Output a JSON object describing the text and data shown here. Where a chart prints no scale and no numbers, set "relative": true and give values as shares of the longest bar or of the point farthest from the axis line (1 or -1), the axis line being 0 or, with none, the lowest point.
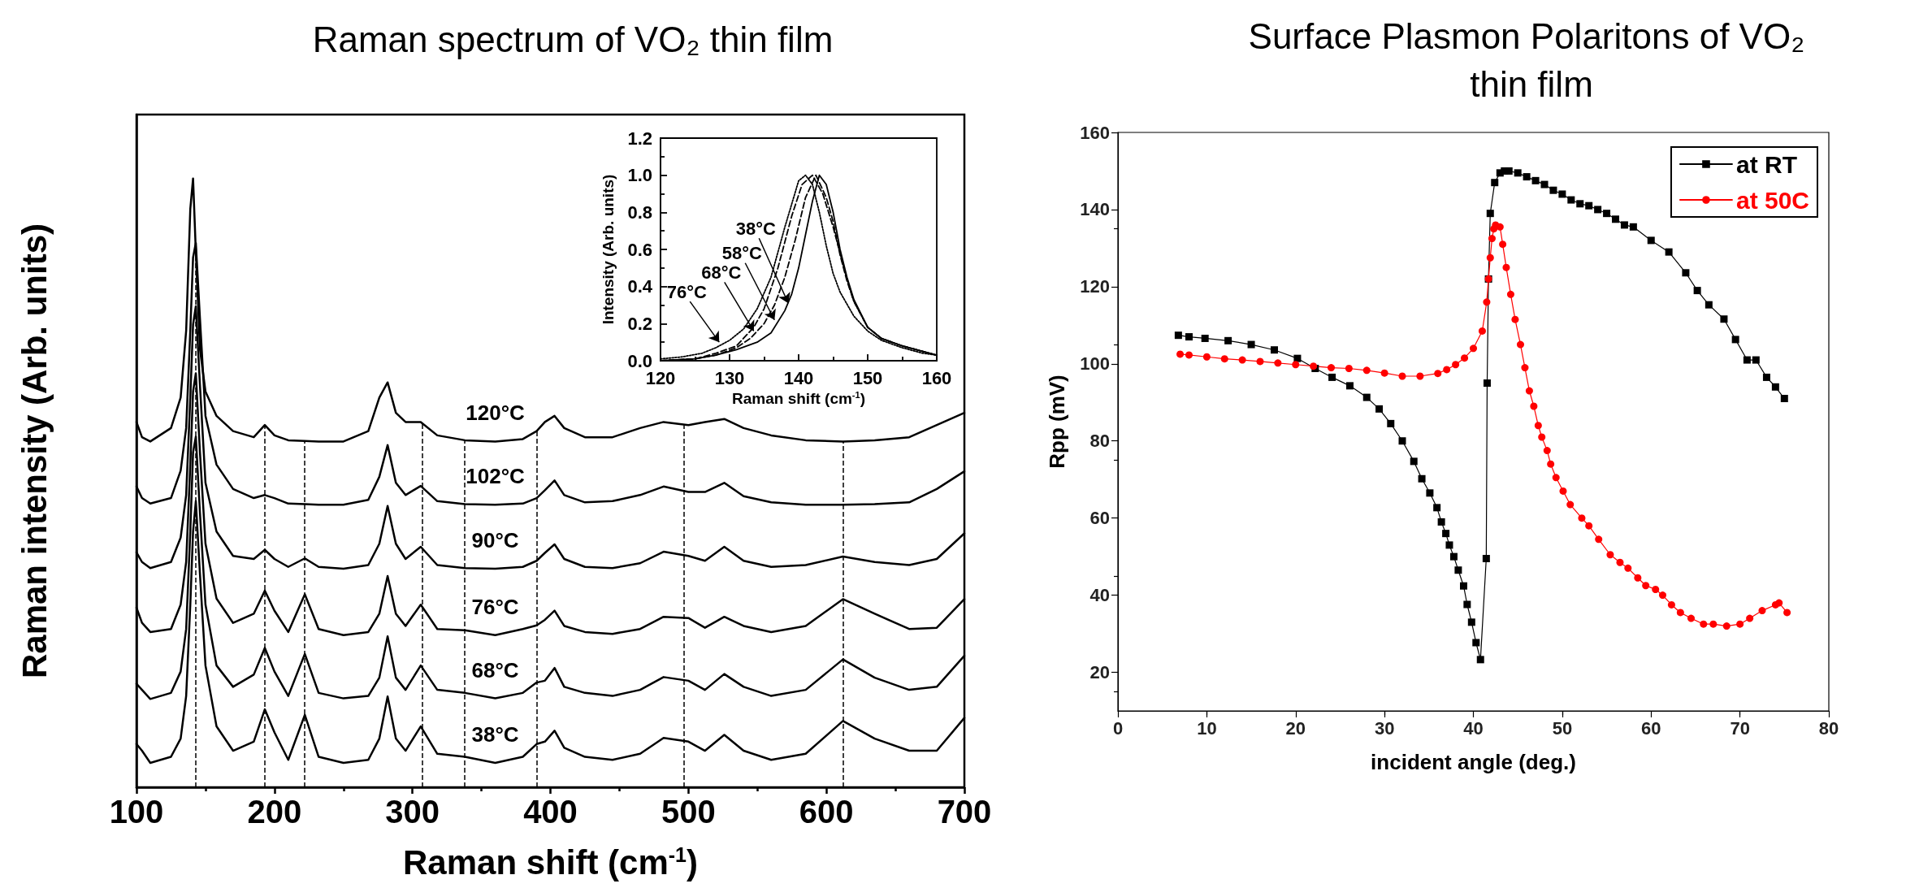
{
  "chart_data": [
    {
      "type": "line",
      "title": "Raman spectrum of VO₂ thin film",
      "xlabel": "Raman shift (cm$^{-1}$)",
      "ylabel": "Raman intensity (Arb. units)",
      "relative": true,
      "tick_labels": "x",
      "marker": "none",
      "line_style": "solid",
      "grid": false,
      "legend": false,
      "xlim": [
        100,
        700
      ],
      "xticks": [
        100,
        200,
        300,
        400,
        500,
        600,
        700
      ],
      "x": [
        100,
        104,
        110,
        125,
        132,
        136,
        139,
        141,
        143,
        146,
        150,
        158,
        170,
        185,
        193,
        200,
        210,
        222,
        232,
        250,
        268,
        276,
        282,
        288,
        295,
        306,
        318,
        338,
        360,
        380,
        390,
        396,
        403,
        410,
        425,
        445,
        465,
        482,
        500,
        512,
        526,
        540,
        560,
        585,
        612,
        635,
        660,
        680,
        700
      ],
      "series": [
        {
          "color": "#000000",
          "values": [
            0.6,
            0.575,
            0.568,
            0.59,
            0.64,
            0.75,
            0.95,
            1.0,
            0.88,
            0.72,
            0.65,
            0.61,
            0.585,
            0.575,
            0.595,
            0.578,
            0.57,
            0.569,
            0.568,
            0.568,
            0.585,
            0.64,
            0.665,
            0.615,
            0.6,
            0.6,
            0.578,
            0.57,
            0.568,
            0.572,
            0.585,
            0.6,
            0.61,
            0.59,
            0.575,
            0.575,
            0.59,
            0.6,
            0.595,
            0.6,
            0.605,
            0.59,
            0.578,
            0.57,
            0.568,
            0.57,
            0.575,
            0.595,
            0.615
          ]
        },
        {
          "color": "#000000",
          "values": [
            0.494,
            0.475,
            0.466,
            0.475,
            0.52,
            0.59,
            0.75,
            0.87,
            0.894,
            0.77,
            0.61,
            0.53,
            0.49,
            0.475,
            0.48,
            0.475,
            0.466,
            0.465,
            0.464,
            0.464,
            0.472,
            0.51,
            0.562,
            0.5,
            0.48,
            0.495,
            0.47,
            0.465,
            0.464,
            0.466,
            0.475,
            0.488,
            0.504,
            0.48,
            0.468,
            0.47,
            0.48,
            0.494,
            0.485,
            0.485,
            0.5,
            0.478,
            0.468,
            0.464,
            0.464,
            0.465,
            0.468,
            0.49,
            0.519
          ]
        },
        {
          "color": "#000000",
          "values": [
            0.386,
            0.37,
            0.36,
            0.37,
            0.41,
            0.48,
            0.64,
            0.76,
            0.79,
            0.66,
            0.5,
            0.42,
            0.38,
            0.375,
            0.39,
            0.375,
            0.362,
            0.376,
            0.362,
            0.359,
            0.365,
            0.4,
            0.462,
            0.4,
            0.375,
            0.395,
            0.365,
            0.36,
            0.359,
            0.362,
            0.372,
            0.385,
            0.399,
            0.375,
            0.362,
            0.36,
            0.368,
            0.387,
            0.38,
            0.372,
            0.395,
            0.372,
            0.362,
            0.365,
            0.379,
            0.37,
            0.365,
            0.375,
            0.417
          ]
        },
        {
          "color": "#000000",
          "values": [
            0.295,
            0.27,
            0.255,
            0.26,
            0.3,
            0.37,
            0.53,
            0.65,
            0.68,
            0.55,
            0.4,
            0.31,
            0.27,
            0.285,
            0.323,
            0.29,
            0.255,
            0.317,
            0.26,
            0.25,
            0.255,
            0.285,
            0.347,
            0.285,
            0.265,
            0.3,
            0.26,
            0.258,
            0.25,
            0.26,
            0.266,
            0.275,
            0.29,
            0.265,
            0.255,
            0.252,
            0.26,
            0.28,
            0.278,
            0.262,
            0.28,
            0.265,
            0.255,
            0.265,
            0.309,
            0.285,
            0.26,
            0.262,
            0.309
          ]
        },
        {
          "color": "#000000",
          "values": [
            0.17,
            0.16,
            0.145,
            0.155,
            0.19,
            0.26,
            0.42,
            0.55,
            0.576,
            0.45,
            0.3,
            0.2,
            0.165,
            0.185,
            0.229,
            0.19,
            0.15,
            0.219,
            0.155,
            0.146,
            0.15,
            0.18,
            0.248,
            0.18,
            0.16,
            0.2,
            0.16,
            0.155,
            0.146,
            0.155,
            0.172,
            0.175,
            0.196,
            0.165,
            0.155,
            0.15,
            0.16,
            0.181,
            0.175,
            0.16,
            0.186,
            0.165,
            0.15,
            0.16,
            0.21,
            0.18,
            0.16,
            0.165,
            0.216
          ]
        },
        {
          "color": "#000000",
          "values": [
            0.071,
            0.06,
            0.04,
            0.05,
            0.08,
            0.15,
            0.3,
            0.42,
            0.47,
            0.35,
            0.2,
            0.1,
            0.06,
            0.075,
            0.128,
            0.09,
            0.045,
            0.119,
            0.05,
            0.04,
            0.045,
            0.08,
            0.149,
            0.08,
            0.06,
            0.1,
            0.055,
            0.05,
            0.04,
            0.05,
            0.071,
            0.075,
            0.093,
            0.065,
            0.05,
            0.045,
            0.055,
            0.081,
            0.075,
            0.06,
            0.086,
            0.06,
            0.045,
            0.055,
            0.109,
            0.08,
            0.06,
            0.06,
            0.114
          ]
        }
      ],
      "ref_lines": [
        {
          "axis": "x",
          "value": 143,
          "line_style": "dashed"
        },
        {
          "axis": "x",
          "value": 193,
          "line_style": "dashed"
        },
        {
          "axis": "x",
          "value": 222,
          "line_style": "dashed"
        },
        {
          "axis": "x",
          "value": 307,
          "line_style": "dashed"
        },
        {
          "axis": "x",
          "value": 338,
          "line_style": "dashed"
        },
        {
          "axis": "x",
          "value": 390,
          "line_style": "dashed"
        },
        {
          "axis": "x",
          "value": 497,
          "line_style": "dashed"
        },
        {
          "axis": "x",
          "value": 612,
          "line_style": "dashed"
        }
      ],
      "annotations": [
        {
          "text": "120°C",
          "x": 360,
          "y": 0.568
        },
        {
          "text": "102°C",
          "x": 360,
          "y": 0.464
        },
        {
          "text": "90°C",
          "x": 360,
          "y": 0.359
        },
        {
          "text": "76°C",
          "x": 360,
          "y": 0.25
        },
        {
          "text": "68°C",
          "x": 360,
          "y": 0.146
        },
        {
          "text": "38°C",
          "x": 360,
          "y": 0.04
        }
      ]
    },
    {
      "type": "line",
      "xlabel": "Raman shift (cm$^{-1}$)",
      "ylabel": "Intensity (Arb. units)",
      "marker": "none",
      "grid": false,
      "legend": false,
      "xlim": [
        120,
        160
      ],
      "xticks": [
        120,
        130,
        140,
        150,
        160
      ],
      "ylim": [
        0,
        1.2
      ],
      "yticks": [
        {
          "value": 0,
          "label": "0.0"
        },
        {
          "value": 0.2,
          "label": "0.2"
        },
        {
          "value": 0.4,
          "label": "0.4"
        },
        {
          "value": 0.6,
          "label": "0.6"
        },
        {
          "value": 0.8,
          "label": "0.8"
        },
        {
          "value": 1,
          "label": "1.0"
        },
        {
          "value": 1.2,
          "label": "1.2"
        }
      ],
      "series": [
        {
          "color": "#000000",
          "line_style": "solid",
          "x": [
            120,
            125,
            128,
            131,
            134,
            136,
            138,
            139,
            140,
            141,
            142,
            143,
            144,
            145,
            146,
            147,
            148,
            150,
            152,
            155,
            158,
            160
          ],
          "values": [
            0.0,
            0.01,
            0.03,
            0.06,
            0.1,
            0.15,
            0.27,
            0.36,
            0.5,
            0.68,
            0.86,
            1.0,
            0.95,
            0.8,
            0.6,
            0.45,
            0.33,
            0.18,
            0.12,
            0.08,
            0.05,
            0.03
          ]
        },
        {
          "color": "#000000",
          "line_style": "dashed",
          "x": [
            120,
            125,
            128,
            131,
            133,
            135,
            136.5,
            138,
            139.5,
            141,
            142.5,
            144,
            145,
            146,
            147,
            148,
            150,
            152,
            155,
            158,
            160
          ],
          "values": [
            0,
            0.01,
            0.03,
            0.07,
            0.12,
            0.2,
            0.3,
            0.45,
            0.65,
            0.88,
            1.0,
            0.88,
            0.75,
            0.57,
            0.43,
            0.32,
            0.18,
            0.12,
            0.08,
            0.05,
            0.03
          ]
        },
        {
          "color": "#000000",
          "line_style": "dashed",
          "x": [
            120,
            125,
            128,
            131,
            133.5,
            135,
            137,
            139,
            140.5,
            142,
            143.5,
            145,
            146,
            147,
            148,
            150,
            152,
            155,
            158,
            160
          ],
          "values": [
            0,
            0.01,
            0.04,
            0.08,
            0.18,
            0.28,
            0.5,
            0.78,
            0.95,
            1.0,
            0.9,
            0.72,
            0.58,
            0.44,
            0.32,
            0.18,
            0.12,
            0.08,
            0.05,
            0.03
          ]
        },
        {
          "color": "#000000",
          "line_style": "dotted",
          "x": [
            120,
            123,
            126,
            128,
            130,
            132,
            134,
            136,
            138,
            140,
            141,
            142,
            143,
            144,
            145,
            146,
            148,
            150,
            152,
            155,
            158,
            160
          ],
          "values": [
            0.01,
            0.02,
            0.04,
            0.07,
            0.11,
            0.17,
            0.28,
            0.45,
            0.72,
            0.97,
            1.0,
            0.95,
            0.8,
            0.62,
            0.47,
            0.37,
            0.24,
            0.16,
            0.11,
            0.07,
            0.04,
            0.03
          ]
        }
      ],
      "annotations": [
        {
          "text": "38°C",
          "x": 138.5,
          "y": 0.31
        },
        {
          "text": "58°C",
          "x": 136.5,
          "y": 0.22
        },
        {
          "text": "68°C",
          "x": 133.5,
          "y": 0.16
        },
        {
          "text": "76°C",
          "x": 128.5,
          "y": 0.1
        }
      ]
    },
    {
      "type": "line",
      "title": "Surface Plasmon Polaritons of VO₂ thin film",
      "xlabel": "incident angle (deg.)",
      "ylabel": "Rpp (mV)",
      "grid": false,
      "legend": "top right",
      "line_style": "solid",
      "xlim": [
        0,
        80
      ],
      "xticks": [
        0,
        10,
        20,
        30,
        40,
        50,
        60,
        70,
        80
      ],
      "ylim": [
        10,
        160
      ],
      "yticks": [
        20,
        40,
        60,
        80,
        100,
        120,
        140,
        160
      ],
      "series": [
        {
          "name": "at RT",
          "color": "#000000",
          "marker": "square",
          "x": [
            6.8,
            8,
            9.8,
            12.4,
            15,
            17.6,
            20.2,
            22.2,
            24.1,
            26.1,
            28,
            29.4,
            30.7,
            32,
            33.3,
            34.2,
            35.1,
            35.9,
            36.4,
            36.9,
            37.3,
            37.8,
            38.3,
            38.9,
            39.3,
            39.8,
            40.3,
            40.8,
            41.45,
            41.55,
            41.7,
            41.9,
            42.4,
            43,
            43.5,
            44,
            45,
            46,
            47,
            48,
            49,
            50,
            51,
            52,
            53,
            54,
            55,
            56,
            57,
            58,
            60,
            62,
            63.9,
            65.2,
            66.5,
            68.2,
            69.5,
            70.8,
            71.8,
            73,
            74,
            75
          ],
          "values": [
            107.4,
            107,
            106.6,
            106,
            105,
            103.6,
            101.4,
            98.8,
            96.5,
            94.3,
            91.3,
            88.3,
            84.5,
            80,
            74.7,
            70.2,
            66.5,
            62.7,
            59,
            56,
            53,
            50,
            46.5,
            42.4,
            37.6,
            33,
            27.7,
            23.3,
            49.5,
            95,
            122,
            139,
            147,
            149.5,
            150,
            150,
            149.5,
            148.5,
            147.5,
            146.5,
            145,
            144,
            142.5,
            141.5,
            141,
            140,
            139,
            137.5,
            136,
            135.5,
            132,
            129,
            123.6,
            119,
            115.3,
            111.6,
            106.3,
            101,
            101,
            96.5,
            94,
            91
          ]
        },
        {
          "name": "at 50C",
          "color": "#ff0000",
          "marker": "circle",
          "x": [
            7,
            8,
            10,
            12,
            14,
            16,
            18,
            20,
            22,
            24,
            26,
            28,
            30,
            32,
            34,
            36,
            37,
            38,
            39,
            40,
            41,
            41.5,
            41.7,
            41.9,
            42.1,
            42.3,
            42.5,
            43,
            43.3,
            43.7,
            44.2,
            44.7,
            45.3,
            45.8,
            46.3,
            46.8,
            47.3,
            47.7,
            48.3,
            48.7,
            49.3,
            50.1,
            50.9,
            52.2,
            53,
            54.1,
            55.4,
            56.5,
            57.4,
            58.5,
            59.4,
            60.5,
            61.3,
            62.3,
            63.3,
            64.5,
            65.9,
            67,
            68.5,
            70,
            71.1,
            72.5,
            74,
            74.4,
            75.3
          ],
          "values": [
            102.5,
            102.3,
            101.8,
            101.3,
            101,
            100.6,
            100.2,
            99.8,
            99.4,
            99,
            98.8,
            98.3,
            97.6,
            96.8,
            96.8,
            97.5,
            98.5,
            99.8,
            101.5,
            104,
            108.5,
            116,
            122,
            127.5,
            132.5,
            135,
            136,
            135.5,
            131,
            125,
            118,
            111.5,
            105,
            99,
            93,
            89,
            84,
            81,
            77.5,
            74,
            70.5,
            67,
            63.5,
            60,
            58,
            54.5,
            50.5,
            48.5,
            47,
            44.5,
            42.5,
            41.5,
            40,
            37.5,
            35.5,
            34,
            32.5,
            32.5,
            32,
            32.5,
            34,
            36,
            37.5,
            38,
            35.5
          ]
        }
      ]
    }
  ]
}
